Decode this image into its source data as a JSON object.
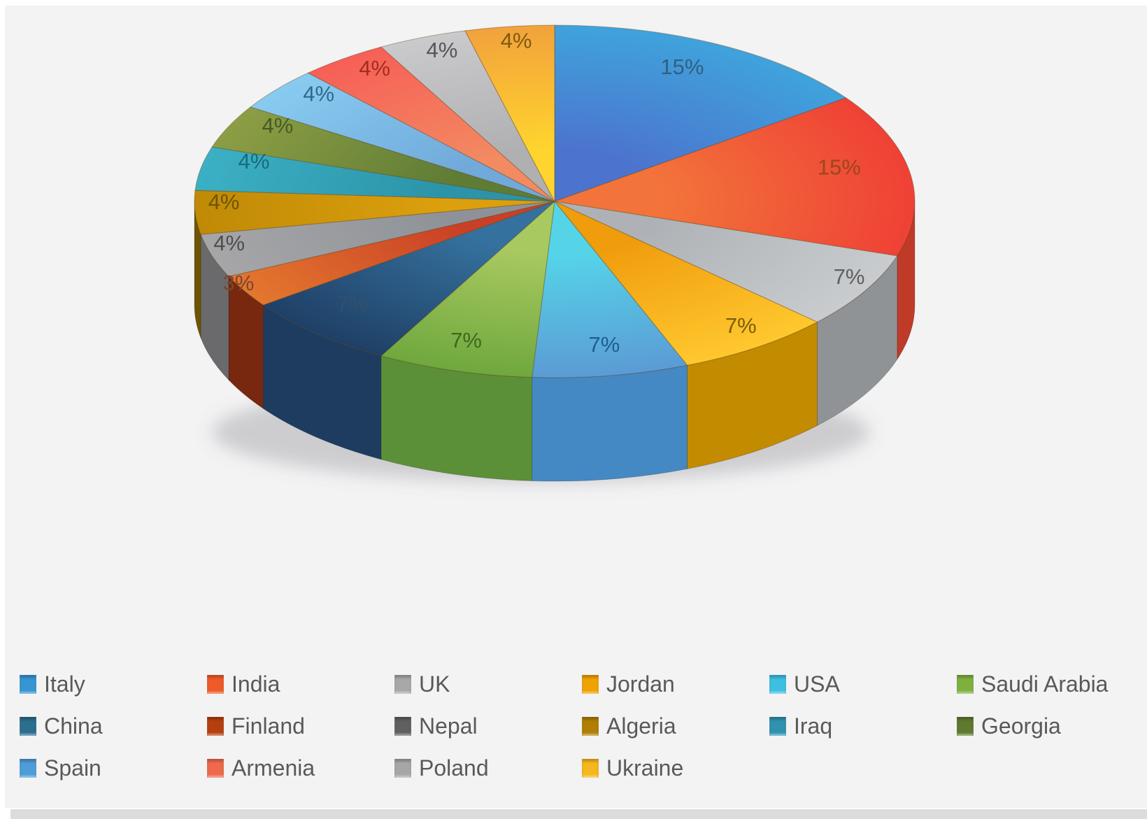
{
  "page": {
    "background": "#F3F3F4",
    "margin_color": "#FFFFFF",
    "scrollbar_color": "#DCDCDC",
    "legend_text_color": "#595959"
  },
  "chart_data": {
    "type": "pie",
    "style": "3d",
    "title": "",
    "unit": "%",
    "start_angle_deg": 0,
    "direction": "clockwise",
    "legend_position": "bottom",
    "legend_columns": 6,
    "categories": [
      "Italy",
      "India",
      "UK",
      "Jordan",
      "USA",
      "Saudi Arabia",
      "China",
      "Finland",
      "Nepal",
      "Algeria",
      "Iraq",
      "Georgia",
      "Spain",
      "Armenia",
      "Poland",
      "Ukraine"
    ],
    "values": [
      15,
      15,
      7,
      7,
      7,
      7,
      7,
      3,
      4,
      4,
      4,
      4,
      4,
      4,
      4,
      4
    ],
    "slices": [
      {
        "name": "Italy",
        "value": 15,
        "label": "15%",
        "color_inner": "#4C74CE",
        "color_outer": "#3FA3DC",
        "color_side": "#2F6FA8",
        "label_color": "#31607E",
        "legend_color": "#3596D2"
      },
      {
        "name": "India",
        "value": 15,
        "label": "15%",
        "color_inner": "#F2743A",
        "color_outer": "#EF4136",
        "color_side": "#C03A28",
        "label_color": "#97481C",
        "legend_color": "#EE5A28"
      },
      {
        "name": "UK",
        "value": 7,
        "label": "7%",
        "color_inner": "#AEB2B6",
        "color_outer": "#C9CCCE",
        "color_side": "#8F9396",
        "label_color": "#5E5E5E",
        "legend_color": "#A8A8A8"
      },
      {
        "name": "Jordan",
        "value": 7,
        "label": "7%",
        "color_inner": "#F09C0C",
        "color_outer": "#FFC82E",
        "color_side": "#C38B00",
        "label_color": "#7C5C0E",
        "legend_color": "#F0A202"
      },
      {
        "name": "USA",
        "value": 7,
        "label": "7%",
        "color_inner": "#55D4E8",
        "color_outer": "#5B9BD5",
        "color_side": "#4489C4",
        "label_color": "#1F5E8E",
        "legend_color": "#3CC0E2"
      },
      {
        "name": "Saudi Arabia",
        "value": 7,
        "label": "7%",
        "color_inner": "#A8C960",
        "color_outer": "#6FA83E",
        "color_side": "#5C9038",
        "label_color": "#3E671E",
        "legend_color": "#7FB03E"
      },
      {
        "name": "China",
        "value": 7,
        "label": "7%",
        "color_inner": "#35719E",
        "color_outer": "#1F4066",
        "color_side": "#1D3C60",
        "label_color": "#32506A",
        "legend_color": "#2B6E8E"
      },
      {
        "name": "Finland",
        "value": 3,
        "label": "3%",
        "color_inner": "#C94026",
        "color_outer": "#E4772E",
        "color_side": "#78280E",
        "label_color": "#7A4630",
        "legend_color": "#B5400E"
      },
      {
        "name": "Nepal",
        "value": 4,
        "label": "4%",
        "color_inner": "#8E9298",
        "color_outer": "#A6A6A8",
        "color_side": "#6A6A6C",
        "label_color": "#4E4E4E",
        "legend_color": "#606060"
      },
      {
        "name": "Algeria",
        "value": 4,
        "label": "4%",
        "color_inner": "#DCA00E",
        "color_outer": "#C08A06",
        "color_side": "#6E5400",
        "label_color": "#6E5404",
        "legend_color": "#B07E04"
      },
      {
        "name": "Iraq",
        "value": 4,
        "label": "4%",
        "color_inner": "#2C93A8",
        "color_outer": "#3BB0C4",
        "color_side": "#1F7284",
        "label_color": "#186A7C",
        "legend_color": "#2E92B0"
      },
      {
        "name": "Georgia",
        "value": 4,
        "label": "4%",
        "color_inner": "#5F7C35",
        "color_outer": "#8C9E44",
        "color_side": "#4A6128",
        "label_color": "#4A5A24",
        "legend_color": "#5E7A2E"
      },
      {
        "name": "Spain",
        "value": 4,
        "label": "4%",
        "color_inner": "#70A9DA",
        "color_outer": "#88CBF0",
        "color_side": "#4E8CC0",
        "label_color": "#30688E",
        "legend_color": "#4E9CD8"
      },
      {
        "name": "Armenia",
        "value": 4,
        "label": "4%",
        "color_inner": "#F28A62",
        "color_outer": "#F75F56",
        "color_side": "#C04838",
        "label_color": "#A02E1E",
        "legend_color": "#EF6A4C"
      },
      {
        "name": "Poland",
        "value": 4,
        "label": "4%",
        "color_inner": "#B0B0B2",
        "color_outer": "#CACACC",
        "color_side": "#8E8E90",
        "label_color": "#565656",
        "legend_color": "#A6A6A6"
      },
      {
        "name": "Ukraine",
        "value": 4,
        "label": "4%",
        "color_inner": "#FFD42E",
        "color_outer": "#F2A23C",
        "color_side": "#C28A10",
        "label_color": "#7E5A10",
        "legend_color": "#F5B71E"
      }
    ]
  }
}
